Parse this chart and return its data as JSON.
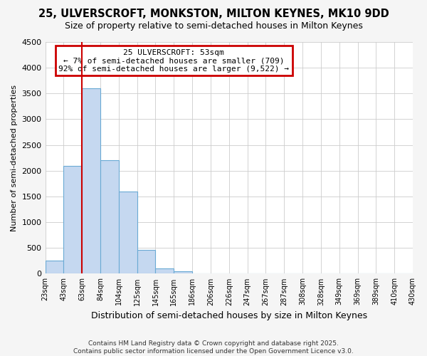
{
  "title": "25, ULVERSCROFT, MONKSTON, MILTON KEYNES, MK10 9DD",
  "subtitle": "Size of property relative to semi-detached houses in Milton Keynes",
  "xlabel": "Distribution of semi-detached houses by size in Milton Keynes",
  "ylabel": "Number of semi-detached properties",
  "bin_edges": [
    23,
    43,
    63,
    84,
    104,
    125,
    145,
    165,
    186,
    206,
    226,
    247,
    267,
    287,
    308,
    328,
    349,
    369,
    389,
    410,
    430
  ],
  "bin_labels": [
    "23sqm",
    "43sqm",
    "63sqm",
    "84sqm",
    "104sqm",
    "125sqm",
    "145sqm",
    "165sqm",
    "186sqm",
    "206sqm",
    "226sqm",
    "247sqm",
    "267sqm",
    "287sqm",
    "308sqm",
    "328sqm",
    "349sqm",
    "369sqm",
    "389sqm",
    "410sqm",
    "430sqm"
  ],
  "bar_values": [
    250,
    2100,
    3600,
    2200,
    1600,
    460,
    100,
    50,
    0,
    0,
    0,
    0,
    0,
    0,
    0,
    0,
    0,
    0,
    0,
    0
  ],
  "bar_color": "#c5d8f0",
  "bar_edge_color": "#6aaad4",
  "vline_color": "#cc0000",
  "annotation_title": "25 ULVERSCROFT: 53sqm",
  "annotation_line1": "← 7% of semi-detached houses are smaller (709)",
  "annotation_line2": "92% of semi-detached houses are larger (9,522) →",
  "annotation_box_color": "#cc0000",
  "ylim": [
    0,
    4500
  ],
  "yticks": [
    0,
    500,
    1000,
    1500,
    2000,
    2500,
    3000,
    3500,
    4000,
    4500
  ],
  "footer": "Contains HM Land Registry data © Crown copyright and database right 2025.\nContains public sector information licensed under the Open Government Licence v3.0.",
  "fig_bg_color": "#f5f5f5",
  "plot_bg_color": "#ffffff"
}
